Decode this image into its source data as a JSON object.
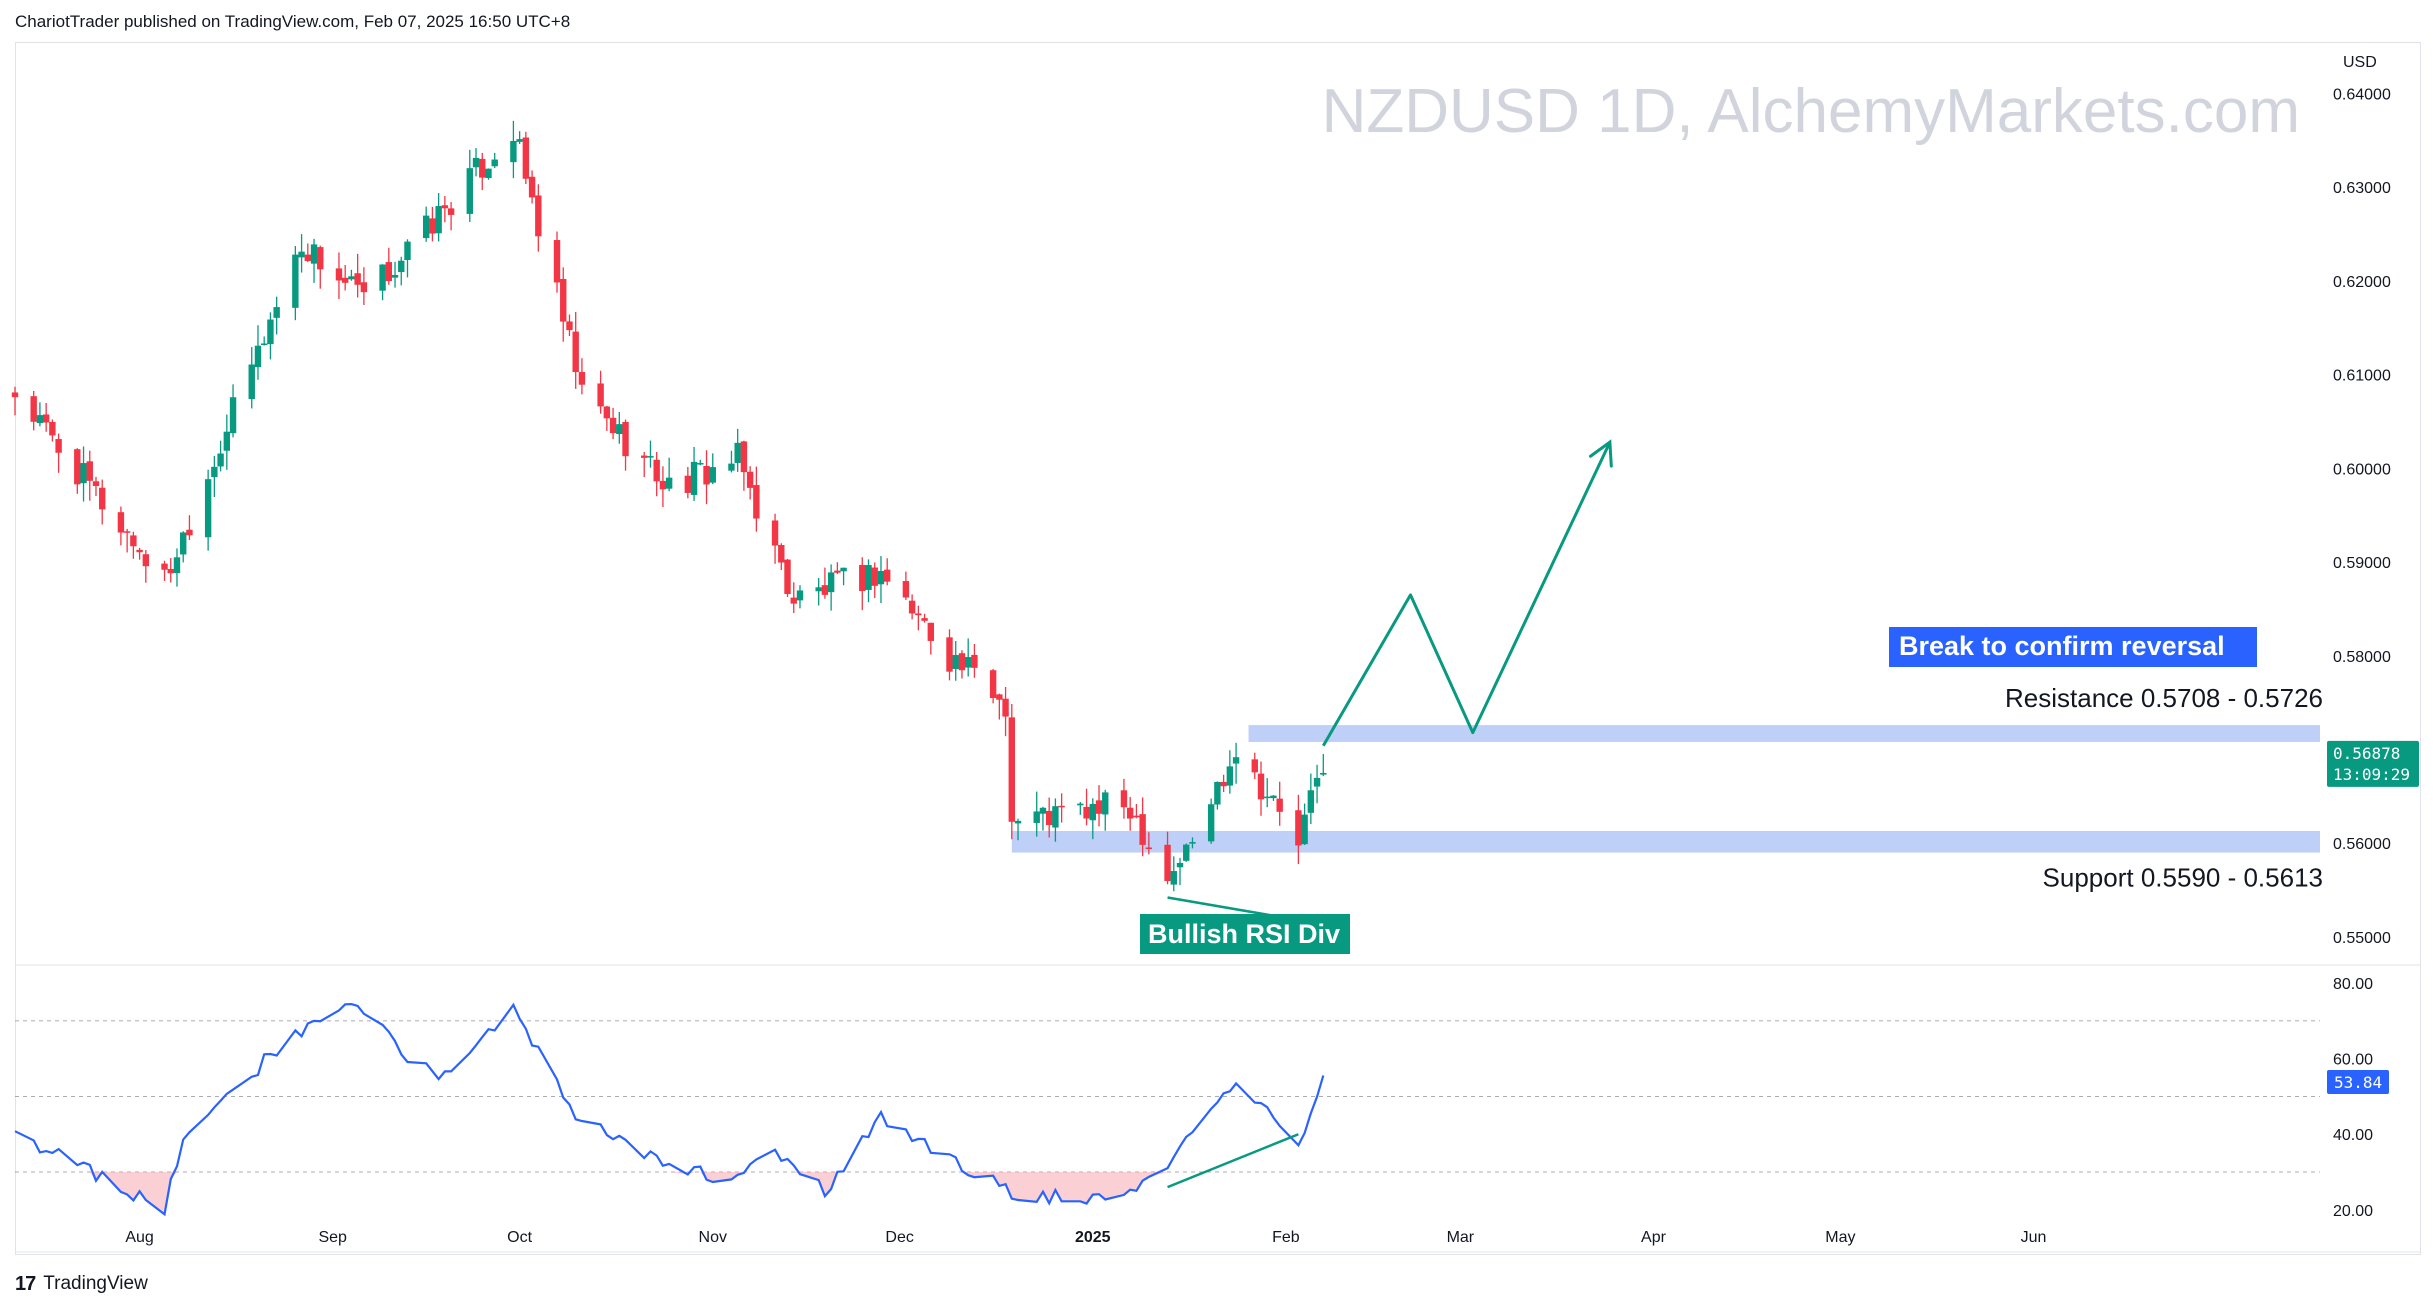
{
  "header": {
    "published": "ChariotTrader published on TradingView.com, Feb 07, 2025 16:50 UTC+8"
  },
  "footer": {
    "brand": "TradingView",
    "logo_mark": "17"
  },
  "watermark": "NZDUSD 1D, AlchemyMarkets.com",
  "colors": {
    "up": "#089981",
    "down": "#f23645",
    "rsi": "#2962ff",
    "zone": "#bbcdf7",
    "arrow": "#089981",
    "grid": "#9598a1",
    "tag_blue": "#2962ff",
    "tag_green": "#089981"
  },
  "annotations": {
    "break_label": "Break to confirm reversal",
    "resistance_label": "Resistance 0.5708 - 0.5726",
    "support_label": "Support 0.5590 - 0.5613",
    "rsi_div_label": "Bullish RSI Div"
  },
  "chart_data": [
    {
      "type": "candlestick",
      "title": "NZDUSD 1D",
      "currency": "USD",
      "ylim": [
        0.547,
        0.6455
      ],
      "y_ticks": [
        "0.64000",
        "0.63000",
        "0.62000",
        "0.61000",
        "0.60000",
        "0.59000",
        "0.58000",
        "0.57000",
        "0.56000",
        "0.55000"
      ],
      "x_ticks": [
        "Aug",
        "Sep",
        "Oct",
        "Nov",
        "Dec",
        "2025",
        "Feb",
        "Mar",
        "Apr",
        "May",
        "Jun"
      ],
      "last_price": "0.56878",
      "countdown": "13:09:29",
      "zones": [
        {
          "name": "Resistance",
          "low": 0.5708,
          "high": 0.5726
        },
        {
          "name": "Support",
          "low": 0.559,
          "high": 0.5613
        }
      ],
      "projection_path": [
        {
          "date": "2025-02-07",
          "price": 0.5704
        },
        {
          "date": "2025-02-21",
          "price": 0.5865
        },
        {
          "date": "2025-03-03",
          "price": 0.5718
        },
        {
          "date": "2025-03-25",
          "price": 0.6028
        }
      ],
      "divergence_line": [
        {
          "date": "2025-01-13",
          "price": 0.5542
        },
        {
          "date": "2025-02-03",
          "price": 0.5518
        }
      ],
      "candle_anchors": [
        {
          "date": "2024-07-12",
          "close": 0.608
        },
        {
          "date": "2024-08-05",
          "close": 0.588
        },
        {
          "date": "2024-08-27",
          "close": 0.624
        },
        {
          "date": "2024-09-06",
          "close": 0.618
        },
        {
          "date": "2024-09-30",
          "close": 0.636
        },
        {
          "date": "2024-10-11",
          "close": 0.608
        },
        {
          "date": "2024-10-25",
          "close": 0.598
        },
        {
          "date": "2024-11-05",
          "close": 0.601
        },
        {
          "date": "2024-11-14",
          "close": 0.586
        },
        {
          "date": "2024-11-28",
          "close": 0.589
        },
        {
          "date": "2024-12-09",
          "close": 0.58
        },
        {
          "date": "2024-12-18",
          "close": 0.575
        },
        {
          "date": "2024-12-19",
          "close": 0.5625
        },
        {
          "date": "2025-01-07",
          "close": 0.564
        },
        {
          "date": "2025-01-13",
          "close": 0.5565
        },
        {
          "date": "2025-01-17",
          "close": 0.56
        },
        {
          "date": "2025-01-24",
          "close": 0.5705
        },
        {
          "date": "2025-02-03",
          "close": 0.56
        },
        {
          "date": "2025-02-07",
          "close": 0.5688
        }
      ]
    },
    {
      "type": "line",
      "name": "RSI",
      "ylim": [
        12,
        84
      ],
      "y_ticks": [
        "80.00",
        "60.00",
        "40.00",
        "20.00"
      ],
      "levels": [
        70,
        50,
        30
      ],
      "last_value": "53.84",
      "anchors": [
        {
          "date": "2024-07-12",
          "value": 40
        },
        {
          "date": "2024-08-05",
          "value": 20
        },
        {
          "date": "2024-08-08",
          "value": 39
        },
        {
          "date": "2024-08-26",
          "value": 67
        },
        {
          "date": "2024-09-05",
          "value": 75
        },
        {
          "date": "2024-09-12",
          "value": 62
        },
        {
          "date": "2024-09-18",
          "value": 55
        },
        {
          "date": "2024-09-30",
          "value": 73
        },
        {
          "date": "2024-10-10",
          "value": 44
        },
        {
          "date": "2024-10-24",
          "value": 33
        },
        {
          "date": "2024-11-04",
          "value": 27
        },
        {
          "date": "2024-11-11",
          "value": 36
        },
        {
          "date": "2024-11-19",
          "value": 25
        },
        {
          "date": "2024-11-28",
          "value": 45
        },
        {
          "date": "2024-12-10",
          "value": 32
        },
        {
          "date": "2024-12-20",
          "value": 24
        },
        {
          "date": "2024-12-31",
          "value": 23
        },
        {
          "date": "2025-01-10",
          "value": 27
        },
        {
          "date": "2025-01-24",
          "value": 55
        },
        {
          "date": "2025-02-03",
          "value": 38
        },
        {
          "date": "2025-02-07",
          "value": 54
        }
      ],
      "divergence_line": [
        {
          "date": "2025-01-13",
          "value": 26
        },
        {
          "date": "2025-02-03",
          "value": 40
        }
      ]
    }
  ]
}
